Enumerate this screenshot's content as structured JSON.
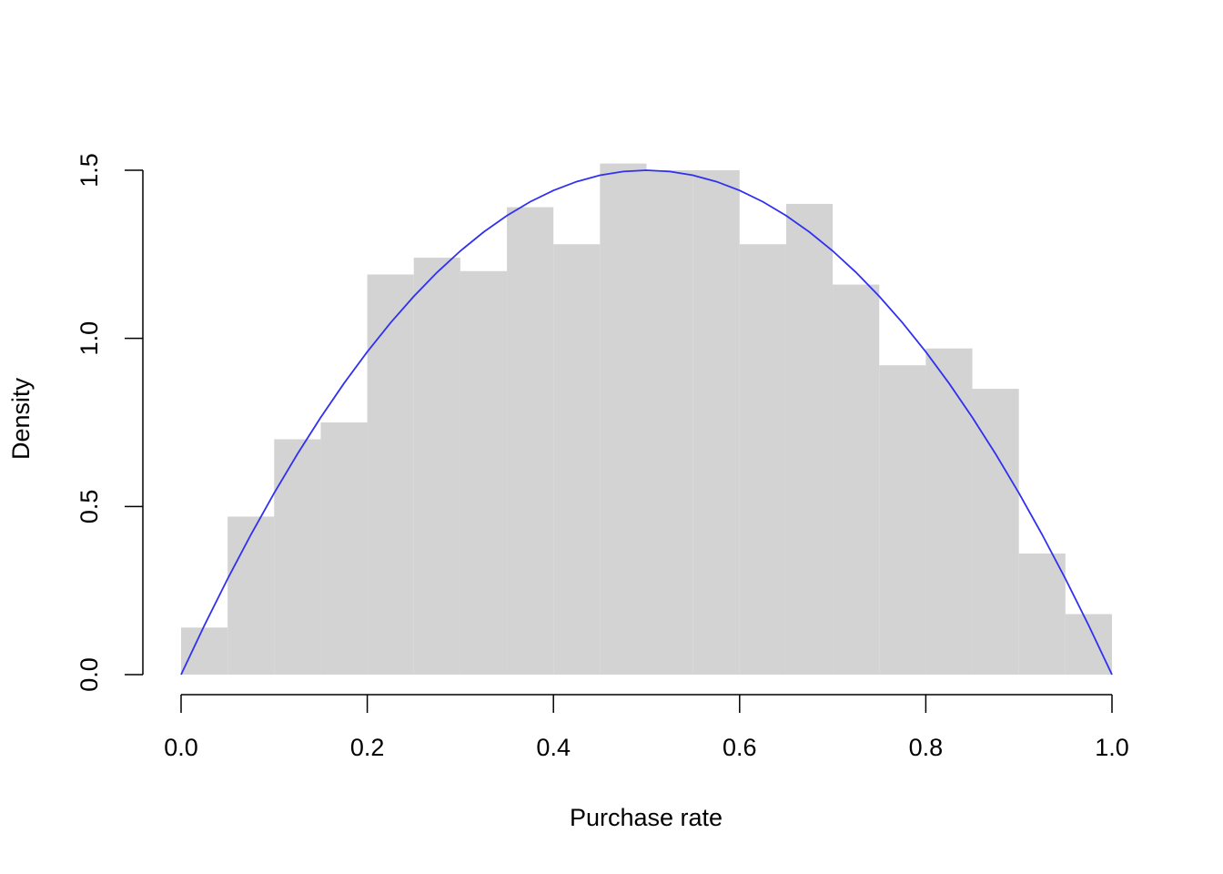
{
  "chart_data": {
    "type": "histogram",
    "xlabel": "Purchase rate",
    "ylabel": "Density",
    "bins": [
      0,
      0.05,
      0.1,
      0.15,
      0.2,
      0.25,
      0.3,
      0.35,
      0.4,
      0.45,
      0.5,
      0.55,
      0.6,
      0.65,
      0.7,
      0.75,
      0.8,
      0.85,
      0.9,
      0.95,
      1
    ],
    "values": [
      0.14,
      0.47,
      0.7,
      0.75,
      1.19,
      1.24,
      1.2,
      1.39,
      1.28,
      1.52,
      1.5,
      1.5,
      1.28,
      1.4,
      1.16,
      0.92,
      0.97,
      0.85,
      0.36,
      0.18
    ],
    "color": "#d3d3d3",
    "curve": {
      "color": "#3030f0",
      "x": [
        0,
        0.025,
        0.05,
        0.075,
        0.1,
        0.125,
        0.15,
        0.175,
        0.2,
        0.225,
        0.25,
        0.275,
        0.3,
        0.325,
        0.35,
        0.375,
        0.4,
        0.425,
        0.45,
        0.475,
        0.5,
        0.525,
        0.55,
        0.575,
        0.6,
        0.625,
        0.65,
        0.675,
        0.7,
        0.725,
        0.75,
        0.775,
        0.8,
        0.825,
        0.85,
        0.875,
        0.9,
        0.925,
        0.95,
        0.975,
        1
      ],
      "values": [
        0,
        0.14625,
        0.285,
        0.41625,
        0.54,
        0.65625,
        0.765,
        0.86625,
        0.96,
        1.04625,
        1.125,
        1.19625,
        1.26,
        1.31625,
        1.365,
        1.40625,
        1.44,
        1.46625,
        1.485,
        1.49625,
        1.5,
        1.49625,
        1.485,
        1.46625,
        1.44,
        1.40625,
        1.365,
        1.31625,
        1.26,
        1.19625,
        1.125,
        1.04625,
        0.96,
        0.86625,
        0.765,
        0.65625,
        0.54,
        0.41625,
        0.285,
        0.14625,
        0
      ]
    },
    "xlim": [
      0,
      1
    ],
    "ylim": [
      0,
      1.5
    ],
    "xticks": [
      {
        "value": 0,
        "label": "0.0"
      },
      0.2,
      0.4,
      0.6,
      0.8,
      {
        "value": 1,
        "label": "1.0"
      }
    ],
    "yticks": [
      {
        "value": 0,
        "label": "0.0"
      },
      0.5,
      {
        "value": 1,
        "label": "1.0"
      },
      1.5
    ]
  }
}
